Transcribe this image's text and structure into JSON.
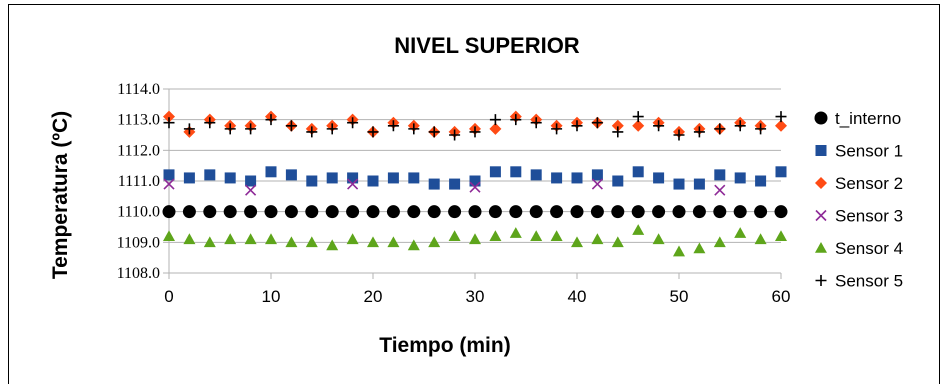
{
  "chart_data": {
    "type": "scatter",
    "title": "NIVEL SUPERIOR",
    "xlabel": "Tiempo (min)",
    "ylabel": "Temperatura (ºC)",
    "xlim": [
      0,
      60
    ],
    "ylim": [
      1108.0,
      1114.0
    ],
    "xticks": [
      "0",
      "10",
      "20",
      "30",
      "40",
      "50",
      "60"
    ],
    "xtick_values": [
      0,
      10,
      20,
      30,
      40,
      50,
      60
    ],
    "yticks": [
      "1108.0",
      "1109.0",
      "1110.0",
      "1111.0",
      "1112.0",
      "1113.0",
      "1114.0"
    ],
    "ytick_values": [
      1108.0,
      1109.0,
      1110.0,
      1111.0,
      1112.0,
      1113.0,
      1114.0
    ],
    "grid": "horizontal",
    "legend_position": "right",
    "series": [
      {
        "name": "t_interno",
        "marker": "circle",
        "color": "#000000",
        "x": [
          0,
          2,
          4,
          6,
          8,
          10,
          12,
          14,
          16,
          18,
          20,
          22,
          24,
          26,
          28,
          30,
          32,
          34,
          36,
          38,
          40,
          42,
          44,
          46,
          48,
          50,
          52,
          54,
          56,
          58,
          60
        ],
        "y": [
          1110.0,
          1110.0,
          1110.0,
          1110.0,
          1110.0,
          1110.0,
          1110.0,
          1110.0,
          1110.0,
          1110.0,
          1110.0,
          1110.0,
          1110.0,
          1110.0,
          1110.0,
          1110.0,
          1110.0,
          1110.0,
          1110.0,
          1110.0,
          1110.0,
          1110.0,
          1110.0,
          1110.0,
          1110.0,
          1110.0,
          1110.0,
          1110.0,
          1110.0,
          1110.0,
          1110.0
        ]
      },
      {
        "name": "Sensor 1",
        "marker": "square",
        "color": "#1f4e99",
        "x": [
          0,
          2,
          4,
          6,
          8,
          10,
          12,
          14,
          16,
          18,
          20,
          22,
          24,
          26,
          28,
          30,
          32,
          34,
          36,
          38,
          40,
          42,
          44,
          46,
          48,
          50,
          52,
          54,
          56,
          58,
          60
        ],
        "y": [
          1111.2,
          1111.1,
          1111.2,
          1111.1,
          1111.0,
          1111.3,
          1111.2,
          1111.0,
          1111.1,
          1111.1,
          1111.0,
          1111.1,
          1111.1,
          1110.9,
          1110.9,
          1111.0,
          1111.3,
          1111.3,
          1111.2,
          1111.1,
          1111.1,
          1111.2,
          1111.0,
          1111.3,
          1111.1,
          1110.9,
          1110.9,
          1111.2,
          1111.1,
          1111.0,
          1111.3
        ]
      },
      {
        "name": "Sensor 2",
        "marker": "diamond",
        "color": "#ff4b14",
        "x": [
          0,
          2,
          4,
          6,
          8,
          10,
          12,
          14,
          16,
          18,
          20,
          22,
          24,
          26,
          28,
          30,
          32,
          34,
          36,
          38,
          40,
          42,
          44,
          46,
          48,
          50,
          52,
          54,
          56,
          58,
          60
        ],
        "y": [
          1113.1,
          1112.6,
          1113.0,
          1112.8,
          1112.8,
          1113.1,
          1112.8,
          1112.7,
          1112.8,
          1113.0,
          1112.6,
          1112.9,
          1112.8,
          1112.6,
          1112.6,
          1112.7,
          1112.7,
          1113.1,
          1113.0,
          1112.8,
          1112.9,
          1112.9,
          1112.8,
          1112.8,
          1112.9,
          1112.6,
          1112.7,
          1112.7,
          1112.9,
          1112.8,
          1112.8
        ]
      },
      {
        "name": "Sensor 3",
        "marker": "x",
        "color": "#8e2a97",
        "x": [
          0,
          8,
          18,
          30,
          42,
          54
        ],
        "y": [
          1110.9,
          1110.7,
          1110.9,
          1110.8,
          1110.9,
          1110.7
        ]
      },
      {
        "name": "Sensor 4",
        "marker": "triangle",
        "color": "#5ea51b",
        "x": [
          0,
          2,
          4,
          6,
          8,
          10,
          12,
          14,
          16,
          18,
          20,
          22,
          24,
          26,
          28,
          30,
          32,
          34,
          36,
          38,
          40,
          42,
          44,
          46,
          48,
          50,
          52,
          54,
          56,
          58,
          60
        ],
        "y": [
          1109.2,
          1109.1,
          1109.0,
          1109.1,
          1109.1,
          1109.1,
          1109.0,
          1109.0,
          1108.9,
          1109.1,
          1109.0,
          1109.0,
          1108.9,
          1109.0,
          1109.2,
          1109.1,
          1109.2,
          1109.3,
          1109.2,
          1109.2,
          1109.0,
          1109.1,
          1109.0,
          1109.4,
          1109.1,
          1108.7,
          1108.8,
          1109.0,
          1109.3,
          1109.1,
          1109.2
        ]
      },
      {
        "name": "Sensor 5",
        "marker": "plus",
        "color": "#000000",
        "x": [
          0,
          2,
          4,
          6,
          8,
          10,
          12,
          14,
          16,
          18,
          20,
          22,
          24,
          26,
          28,
          30,
          32,
          34,
          36,
          38,
          40,
          42,
          44,
          46,
          48,
          50,
          52,
          54,
          56,
          58,
          60
        ],
        "y": [
          1112.9,
          1112.7,
          1112.9,
          1112.7,
          1112.7,
          1113.0,
          1112.8,
          1112.6,
          1112.7,
          1112.9,
          1112.6,
          1112.8,
          1112.7,
          1112.6,
          1112.5,
          1112.6,
          1113.0,
          1113.0,
          1112.9,
          1112.7,
          1112.8,
          1112.9,
          1112.6,
          1113.1,
          1112.8,
          1112.5,
          1112.6,
          1112.7,
          1112.8,
          1112.7,
          1113.1
        ]
      }
    ]
  }
}
